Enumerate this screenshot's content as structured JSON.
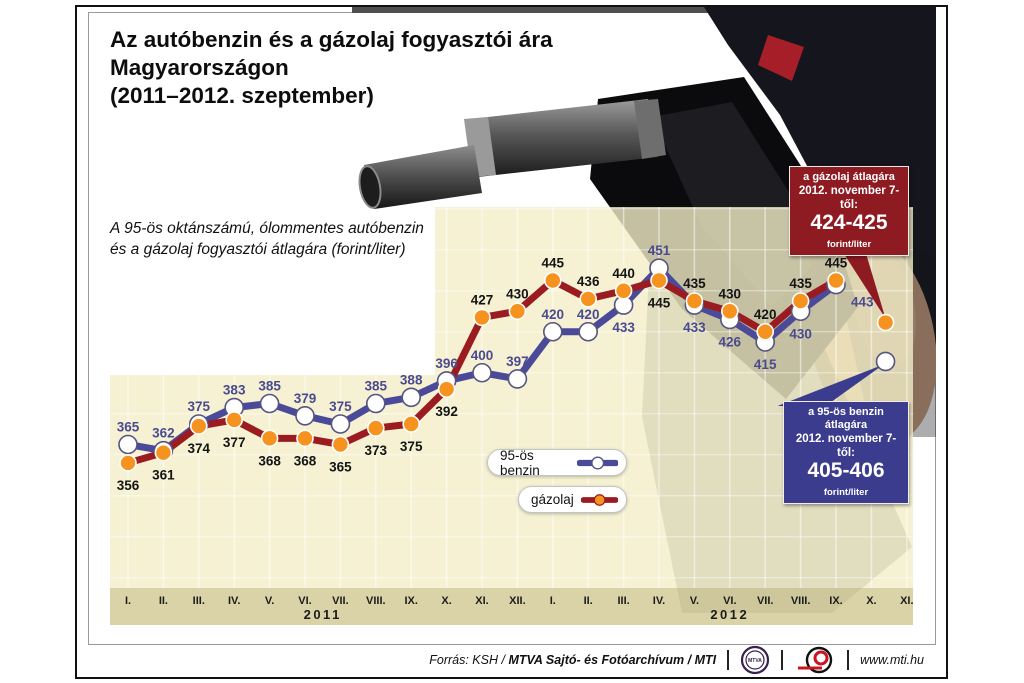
{
  "title": {
    "lines": [
      "Az autóbenzin és a gázolaj fogyasztói ára",
      "Magyarországon",
      "(2011–2012. szeptember)"
    ]
  },
  "subtitle": {
    "lines": [
      "A 95-ös oktánszámú, ólommentes autóbenzin",
      "és a gázolaj fogyasztói átlagára (forint/liter)"
    ]
  },
  "chart_data": {
    "type": "line",
    "x_tick_labels": [
      "I.",
      "II.",
      "III.",
      "IV.",
      "V.",
      "VI.",
      "VII.",
      "VIII.",
      "IX.",
      "X.",
      "XI.",
      "XII.",
      "I.",
      "II.",
      "III.",
      "IV.",
      "V.",
      "VI.",
      "VII.",
      "VIII.",
      "IX.",
      "X.",
      "XI."
    ],
    "year_groups": [
      {
        "label": "2011",
        "from": 0,
        "to": 11
      },
      {
        "label": "2012",
        "from": 12,
        "to": 22
      }
    ],
    "ylim": [
      295,
      485
    ],
    "grid": true,
    "legend_position": "inside-bottom-center",
    "series": [
      {
        "name": "95-ös benzin",
        "color": "#4a4a99",
        "marker_fill": "#ffffff",
        "marker_stroke": "#55557f",
        "label_color": "#4a4a8e",
        "values": [
          365,
          362,
          375,
          383,
          385,
          379,
          375,
          385,
          388,
          396,
          400,
          397,
          420,
          420,
          433,
          451,
          433,
          426,
          415,
          430,
          443
        ],
        "label_sides": [
          "above",
          "above",
          "above",
          "above",
          "above",
          "above",
          "above",
          "above",
          "above",
          "above",
          "above",
          "above",
          "above",
          "above",
          "below",
          "above",
          "below",
          "below",
          "below",
          "below",
          "below-right"
        ]
      },
      {
        "name": "gázolaj",
        "color": "#9a1b20",
        "marker_fill": "#f6921e",
        "marker_stroke": "#ffffff",
        "label_color": "#141414",
        "values": [
          356,
          361,
          374,
          377,
          368,
          368,
          365,
          373,
          375,
          392,
          427,
          430,
          445,
          436,
          440,
          445,
          435,
          430,
          420,
          435,
          445
        ],
        "label_sides": [
          "below",
          "below",
          "below",
          "below",
          "below",
          "below",
          "below",
          "below",
          "below",
          "below",
          "above",
          "above",
          "above",
          "above",
          "above",
          "below",
          "above",
          "above",
          "above",
          "above",
          "above"
        ]
      }
    ],
    "november_points": [
      {
        "series_index": 1,
        "x_index": 21.4,
        "value": 424.5
      },
      {
        "series_index": 0,
        "x_index": 21.4,
        "value": 405.5
      }
    ],
    "panel_color": "rgba(243,237,199,0.8)",
    "band_color": "rgba(213,205,155,0.88)"
  },
  "callouts": {
    "diesel": {
      "line1": "a gázolaj átlagára",
      "line2": "2012. november 7-től:",
      "value": "424-425",
      "unit": "forint/liter",
      "bg": "#8e1b22"
    },
    "petrol": {
      "line1": "a 95-ös benzin átlagára",
      "line2": "2012. november 7-től:",
      "value": "405-406",
      "unit": "forint/liter",
      "bg": "#3c3c8e"
    }
  },
  "footer": {
    "source_prefix": "Forrás: KSH / ",
    "source_bold": "MTVA Sajtó- és Fotóarchívum / MTI",
    "url": "www.mti.hu",
    "mtva_logo_text": "MTVA"
  }
}
